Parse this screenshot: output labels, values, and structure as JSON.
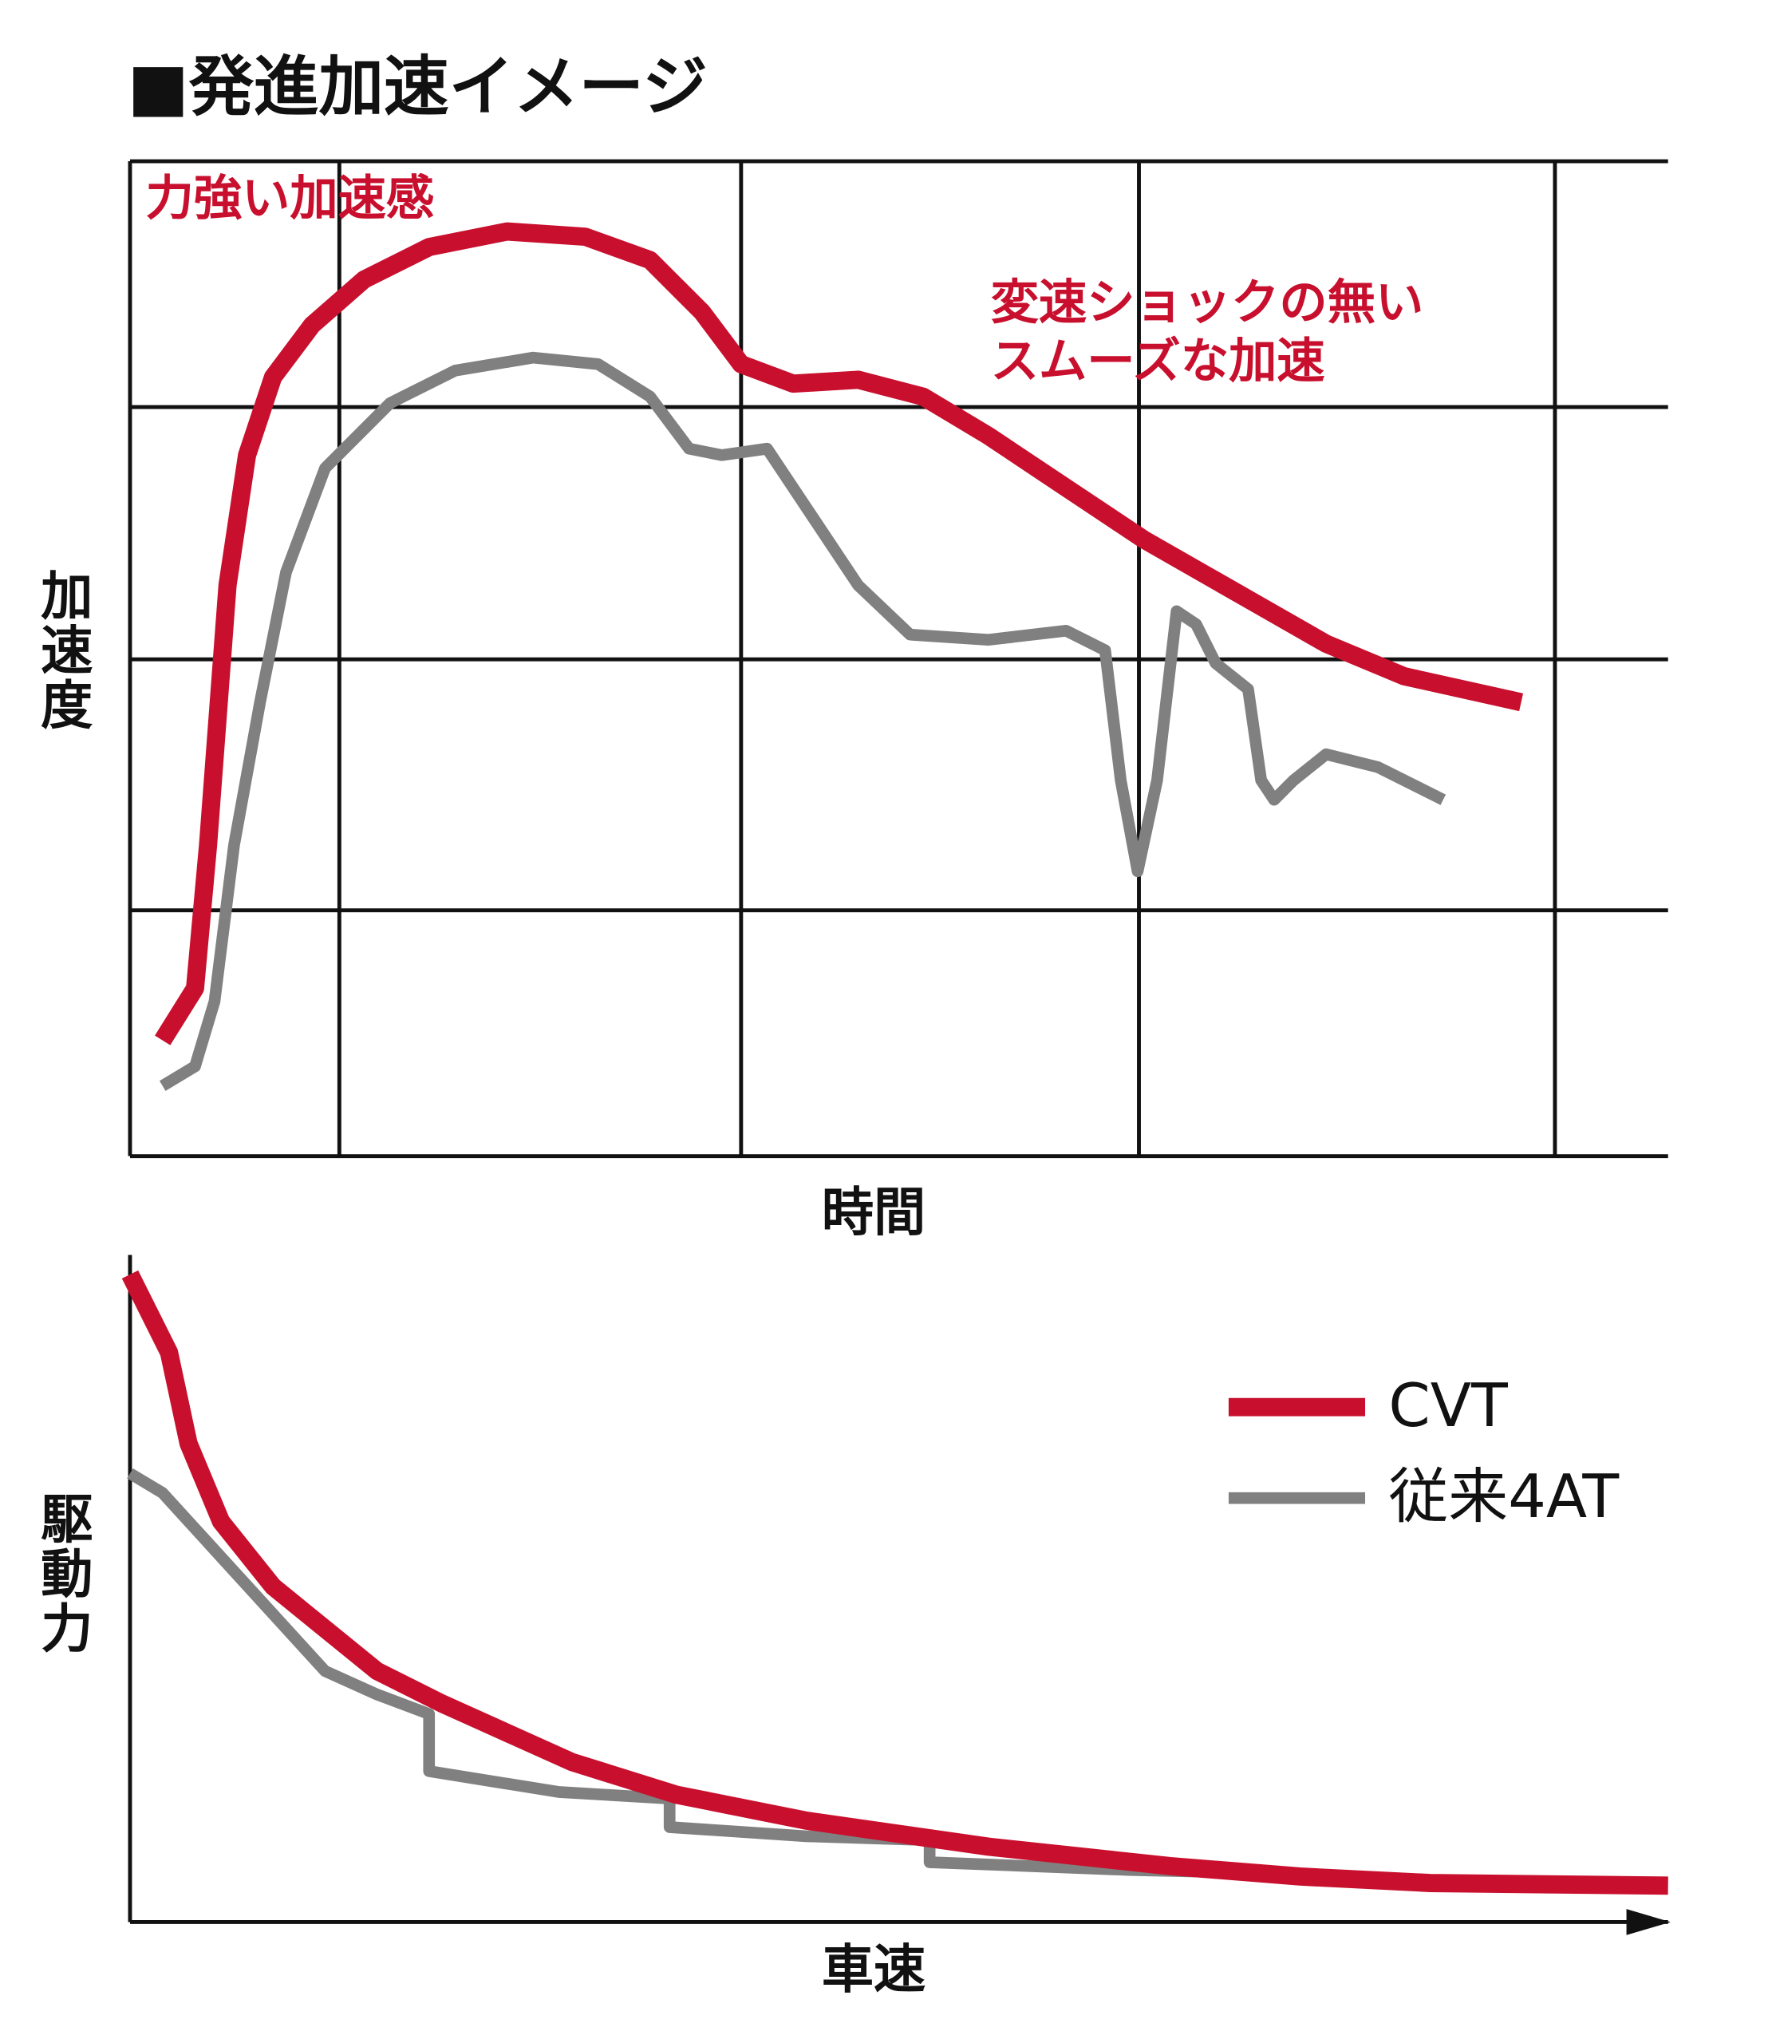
{
  "title": "■発進加速イメージ",
  "chart_data": [
    {
      "type": "line",
      "ylabel": "加速度",
      "xlabel": "時間",
      "annotations": [
        "力強い加速感",
        "変速ショックの無い",
        "スムーズな加速"
      ],
      "annotation_color": "#c8102e",
      "xlim": [
        0,
        1183
      ],
      "ylim": [
        0,
        765
      ],
      "grid": true,
      "xgrid": [
        161,
        470,
        776,
        1096
      ],
      "ygrid": [
        189,
        382,
        576,
        765
      ],
      "series": [
        {
          "color": "#c8102e",
          "x": [
            25,
            50,
            60,
            75,
            90,
            110,
            140,
            180,
            230,
            290,
            350,
            400,
            440,
            470,
            510,
            560,
            610,
            660,
            720,
            780,
            850,
            920,
            980,
            1070
          ],
          "values": [
            89,
            129,
            239,
            439,
            539,
            599,
            639,
            674,
            699,
            711,
            707,
            689,
            649,
            609,
            594,
            597,
            584,
            554,
            514,
            474,
            434,
            394,
            369,
            349
          ]
        },
        {
          "color": "#808080",
          "x": [
            25,
            50,
            65,
            80,
            100,
            120,
            150,
            200,
            250,
            310,
            360,
            400,
            430,
            455,
            490,
            520,
            560,
            600,
            660,
            720,
            750,
            762,
            775,
            790,
            805,
            820,
            835,
            860,
            870,
            880,
            895,
            920,
            960,
            1010
          ],
          "values": [
            54,
            69,
            119,
            239,
            349,
            449,
            529,
            579,
            604,
            614,
            609,
            584,
            544,
            539,
            544,
            499,
            439,
            401,
            397,
            404,
            389,
            289,
            219,
            289,
            419,
            409,
            379,
            359,
            289,
            274,
            289,
            309,
            299,
            274
          ]
        }
      ]
    },
    {
      "type": "line",
      "ylabel": "駆動力",
      "xlabel": "車速",
      "xlim": [
        0,
        1183
      ],
      "ylim": [
        0,
        513
      ],
      "legend": "right",
      "series": [
        {
          "name": "CVT",
          "color": "#c8102e",
          "x": [
            0,
            30,
            45,
            70,
            110,
            190,
            240,
            340,
            420,
            520,
            660,
            800,
            900,
            1000,
            1183
          ],
          "values": [
            498,
            438,
            368,
            308,
            258,
            193,
            168,
            123,
            98,
            78,
            58,
            43,
            35,
            30,
            28
          ]
        },
        {
          "name": "従来4AT",
          "color": "#808080",
          "x": [
            0,
            25,
            150,
            190,
            230,
            230,
            330,
            415,
            415,
            520,
            615,
            615,
            770,
            860
          ],
          "values": [
            345,
            330,
            193,
            175,
            160,
            116,
            100,
            95,
            73,
            66,
            63,
            46,
            40,
            38
          ]
        }
      ]
    }
  ]
}
